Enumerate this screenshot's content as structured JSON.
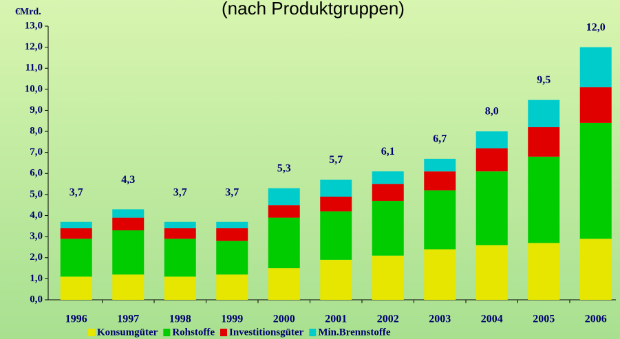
{
  "chart_data": {
    "type": "stacked_bar",
    "title": "(nach Produktgruppen)",
    "y_label": "€Mrd.",
    "categories": [
      "1996",
      "1997",
      "1998",
      "1999",
      "2000",
      "2001",
      "2002",
      "2003",
      "2004",
      "2005",
      "2006"
    ],
    "series": [
      {
        "name": "Konsumgüter",
        "color": "#e6e600",
        "values": [
          1.1,
          1.2,
          1.1,
          1.2,
          1.5,
          1.9,
          2.1,
          2.4,
          2.6,
          2.7,
          2.9
        ]
      },
      {
        "name": "Rohstoffe",
        "color": "#00cc00",
        "values": [
          1.8,
          2.1,
          1.8,
          1.6,
          2.4,
          2.3,
          2.6,
          2.8,
          3.5,
          4.1,
          5.5
        ]
      },
      {
        "name": "Investitionsgüter",
        "color": "#e00000",
        "values": [
          0.5,
          0.6,
          0.5,
          0.6,
          0.6,
          0.7,
          0.8,
          0.9,
          1.1,
          1.4,
          1.7
        ]
      },
      {
        "name": "Min.Brennstoffe",
        "color": "#00cccc",
        "values": [
          0.3,
          0.4,
          0.3,
          0.3,
          0.8,
          0.8,
          0.6,
          0.6,
          0.8,
          1.3,
          1.9
        ]
      }
    ],
    "totals": [
      3.7,
      4.3,
      3.7,
      3.7,
      5.3,
      5.7,
      6.1,
      6.7,
      8.0,
      9.5,
      12.0
    ],
    "total_labels": [
      "3,7",
      "4,3",
      "3,7",
      "3,7",
      "5,3",
      "5,7",
      "6,1",
      "6,7",
      "8,0",
      "9,5",
      "12,0"
    ],
    "ylim": [
      0,
      13
    ],
    "yticks": [
      {
        "value": 0,
        "label": "0,0"
      },
      {
        "value": 1,
        "label": "1,0"
      },
      {
        "value": 2,
        "label": "2,0"
      },
      {
        "value": 3,
        "label": "3,0"
      },
      {
        "value": 4,
        "label": "4,0"
      },
      {
        "value": 5,
        "label": "5,0"
      },
      {
        "value": 6,
        "label": "6,0"
      },
      {
        "value": 7,
        "label": "7,0"
      },
      {
        "value": 8,
        "label": "8,0"
      },
      {
        "value": 9,
        "label": "9,0"
      },
      {
        "value": 10,
        "label": "10,0"
      },
      {
        "value": 11,
        "label": "11,0"
      },
      {
        "value": 12,
        "label": "12,0"
      },
      {
        "value": 13,
        "label": "13,0"
      }
    ],
    "legend": "bottom"
  }
}
